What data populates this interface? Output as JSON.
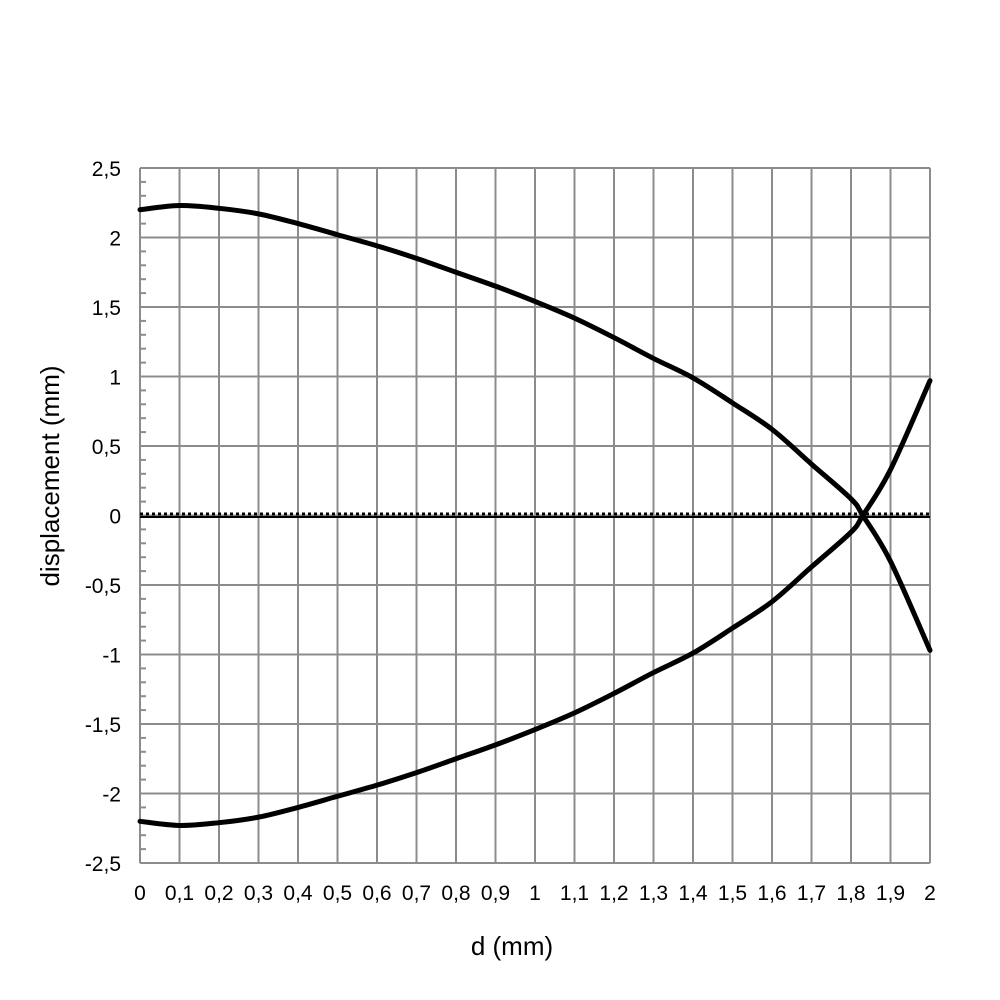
{
  "chart_data": {
    "type": "line",
    "title": "",
    "xlabel": "d (mm)",
    "ylabel": "displacement (mm)",
    "xlim": [
      0,
      2
    ],
    "ylim": [
      -2.5,
      2.5
    ],
    "grid": true,
    "legend": "none",
    "x_ticks": [
      "0",
      "0,1",
      "0,2",
      "0,3",
      "0,4",
      "0,5",
      "0,6",
      "0,7",
      "0,8",
      "0,9",
      "1",
      "1,1",
      "1,2",
      "1,3",
      "1,4",
      "1,5",
      "1,6",
      "1,7",
      "1,8",
      "1,9",
      "2"
    ],
    "x_tick_values": [
      0,
      0.1,
      0.2,
      0.3,
      0.4,
      0.5,
      0.6,
      0.7,
      0.8,
      0.9,
      1.0,
      1.1,
      1.2,
      1.3,
      1.4,
      1.5,
      1.6,
      1.7,
      1.8,
      1.9,
      2.0
    ],
    "y_ticks": [
      "2,5",
      "2",
      "1,5",
      "1",
      "0,5",
      "0",
      "-0,5",
      "-1",
      "-1,5",
      "-2",
      "-2,5"
    ],
    "y_tick_values": [
      2.5,
      2,
      1.5,
      1,
      0.5,
      0,
      -0.5,
      -1,
      -1.5,
      -2,
      -2.5
    ],
    "series": [
      {
        "x": [
          0,
          0.1,
          0.2,
          0.3,
          0.4,
          0.5,
          0.6,
          0.7,
          0.8,
          0.9,
          1.0,
          1.1,
          1.2,
          1.3,
          1.4,
          1.5,
          1.6,
          1.7,
          1.8,
          1.83,
          1.9,
          2.0
        ],
        "values": [
          2.2,
          2.23,
          2.21,
          2.17,
          2.1,
          2.02,
          1.94,
          1.85,
          1.75,
          1.65,
          1.54,
          1.42,
          1.28,
          1.13,
          0.99,
          0.81,
          0.62,
          0.37,
          0.12,
          0.0,
          -0.33,
          -0.97
        ],
        "color": "#000000"
      },
      {
        "x": [
          0,
          0.1,
          0.2,
          0.3,
          0.4,
          0.5,
          0.6,
          0.7,
          0.8,
          0.9,
          1.0,
          1.1,
          1.2,
          1.3,
          1.4,
          1.5,
          1.6,
          1.7,
          1.8,
          1.83,
          1.9,
          2.0
        ],
        "values": [
          -2.2,
          -2.23,
          -2.21,
          -2.17,
          -2.1,
          -2.02,
          -1.94,
          -1.85,
          -1.75,
          -1.65,
          -1.54,
          -1.42,
          -1.28,
          -1.13,
          -0.99,
          -0.81,
          -0.62,
          -0.37,
          -0.12,
          0.0,
          0.33,
          0.97
        ],
        "color": "#000000"
      }
    ],
    "zero_line": {
      "y": 0,
      "style": "dotted",
      "color": "#000000"
    }
  }
}
